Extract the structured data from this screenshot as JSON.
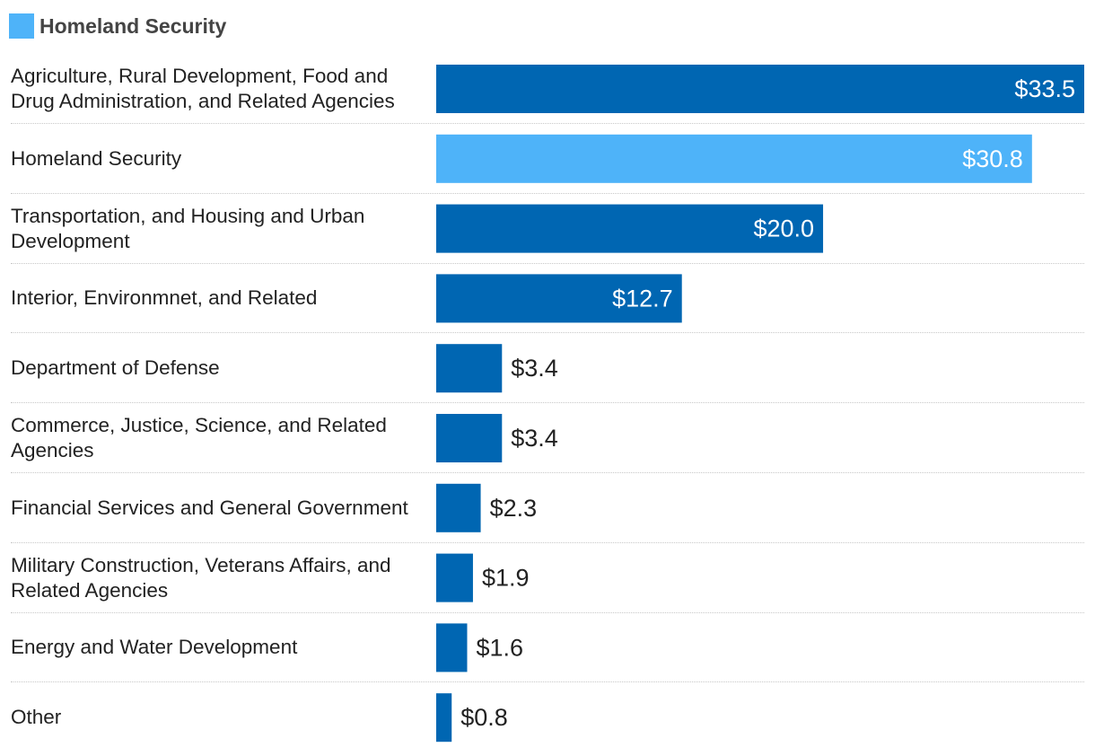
{
  "legend": {
    "label": "Homeland Security",
    "color": "#4eb3f9"
  },
  "colors": {
    "default_bar": "#0066b2",
    "highlight_bar": "#4eb3f9",
    "label_inside": "#ffffff",
    "label_outside": "#222222"
  },
  "chart_data": {
    "type": "bar",
    "orientation": "horizontal",
    "highlighted": "Homeland Security",
    "categories": [
      "Agriculture, Rural Development, Food and Drug Administration, and Related Agencies",
      "Homeland Security",
      "Transportation, and Housing and Urban Development",
      "Interior, Environmnet, and Related",
      "Department of Defense",
      "Commerce, Justice, Science, and Related Agencies",
      "Financial Services and General Government",
      "Military Construction, Veterans Affairs, and Related Agencies",
      "Energy and Water Development",
      "Other"
    ],
    "values": [
      33.5,
      30.8,
      20.0,
      12.7,
      3.4,
      3.4,
      2.3,
      1.9,
      1.6,
      0.8
    ],
    "value_labels": [
      "$33.5",
      "$30.8",
      "$20.0",
      "$12.7",
      "$3.4",
      "$3.4",
      "$2.3",
      "$1.9",
      "$1.6",
      "$0.8"
    ],
    "xlim": [
      0,
      33.5
    ],
    "title": "",
    "xlabel": "",
    "ylabel": ""
  }
}
